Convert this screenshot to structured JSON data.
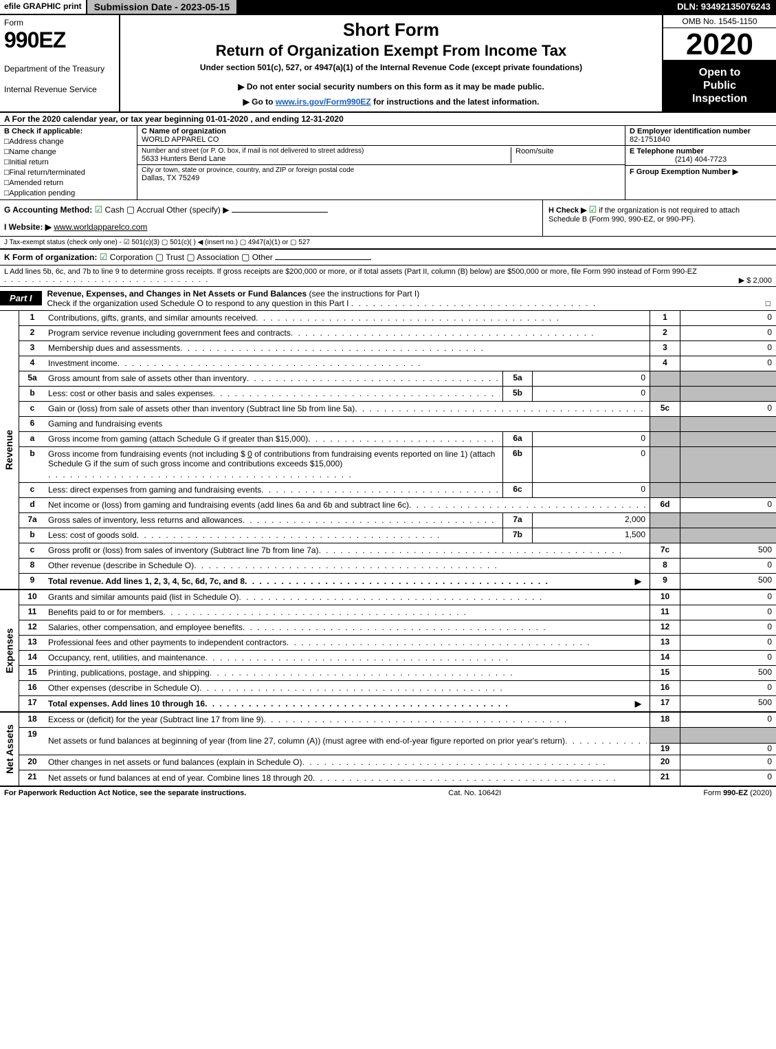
{
  "topbar": {
    "print": "efile GRAPHIC print",
    "sub_date": "Submission Date - 2023-05-15",
    "dln": "DLN: 93492135076243"
  },
  "header": {
    "form_word": "Form",
    "form_code": "990EZ",
    "dept": "Department of the Treasury",
    "irs": "Internal Revenue Service",
    "short_form": "Short Form",
    "return_title": "Return of Organization Exempt From Income Tax",
    "under_section": "Under section 501(c), 527, or 4947(a)(1) of the Internal Revenue Code (except private foundations)",
    "ssn_warning": "▶ Do not enter social security numbers on this form as it may be made public.",
    "goto_prefix": "▶ Go to ",
    "goto_link": "www.irs.gov/Form990EZ",
    "goto_suffix": " for instructions and the latest information.",
    "omb": "OMB No. 1545-1150",
    "year": "2020",
    "open1": "Open to",
    "open2": "Public",
    "open3": "Inspection"
  },
  "rowA": "A For the 2020 calendar year, or tax year beginning 01-01-2020 , and ending 12-31-2020",
  "colB": {
    "title": "B  Check if applicable:",
    "opts": [
      "Address change",
      "Name change",
      "Initial return",
      "Final return/terminated",
      "Amended return",
      "Application pending"
    ]
  },
  "colC": {
    "name_lbl": "C Name of organization",
    "name_val": "WORLD APPAREL CO",
    "addr_lbl": "Number and street (or P. O. box, if mail is not delivered to street address)",
    "addr_val": "5633 Hunters Bend Lane",
    "room_lbl": "Room/suite",
    "city_lbl": "City or town, state or province, country, and ZIP or foreign postal code",
    "city_val": "Dallas, TX  75249"
  },
  "colDE": {
    "d_lbl": "D Employer identification number",
    "d_val": "82-1751840",
    "e_lbl": "E Telephone number",
    "e_val": "(214) 404-7723",
    "f_lbl": "F Group Exemption Number  ▶"
  },
  "rowG": {
    "label": "G Accounting Method:",
    "cash": " Cash",
    "accrual": " Accrual   Other (specify) ▶"
  },
  "rowH": {
    "label": "H  Check ▶",
    "text": " if the organization is not required to attach Schedule B (Form 990, 990-EZ, or 990-PF)."
  },
  "rowI": {
    "label": "I Website: ▶",
    "val": "www.worldapparelco.com"
  },
  "rowJ": "J Tax-exempt status (check only one) -  ☑ 501(c)(3)  ▢ 501(c)(  ) ◀ (insert no.)  ▢ 4947(a)(1) or  ▢ 527",
  "rowK": {
    "label": "K Form of organization:",
    "corp": " Corporation",
    "trust": " Trust",
    "assoc": " Association",
    "other": " Other"
  },
  "rowL": {
    "text": "L Add lines 5b, 6c, and 7b to line 9 to determine gross receipts. If gross receipts are $200,000 or more, or if total assets (Part II, column (B) below) are $500,000 or more, file Form 990 instead of Form 990-EZ",
    "amount": "▶ $ 2,000"
  },
  "part1": {
    "tag": "Part I",
    "desc_bold": "Revenue, Expenses, and Changes in Net Assets or Fund Balances",
    "desc_rest": " (see the instructions for Part I)",
    "check_line": "Check if the organization used Schedule O to respond to any question in this Part I",
    "check_sym": "□"
  },
  "side_labels": {
    "revenue": "Revenue",
    "expenses": "Expenses",
    "netassets": "Net Assets"
  },
  "rev_lines": [
    {
      "n": "1",
      "t": "Contributions, gifts, grants, and similar amounts received",
      "rn": "1",
      "rv": "0"
    },
    {
      "n": "2",
      "t": "Program service revenue including government fees and contracts",
      "rn": "2",
      "rv": "0"
    },
    {
      "n": "3",
      "t": "Membership dues and assessments",
      "rn": "3",
      "rv": "0"
    },
    {
      "n": "4",
      "t": "Investment income",
      "rn": "4",
      "rv": "0"
    }
  ],
  "line5a": {
    "n": "5a",
    "t": "Gross amount from sale of assets other than inventory",
    "sb": "5a",
    "sv": "0"
  },
  "line5b": {
    "n": "b",
    "t": "Less: cost or other basis and sales expenses",
    "sb": "5b",
    "sv": "0"
  },
  "line5c": {
    "n": "c",
    "t": "Gain or (loss) from sale of assets other than inventory (Subtract line 5b from line 5a)",
    "rn": "5c",
    "rv": "0"
  },
  "line6": {
    "n": "6",
    "t": "Gaming and fundraising events"
  },
  "line6a": {
    "n": "a",
    "t": "Gross income from gaming (attach Schedule G if greater than $15,000)",
    "sb": "6a",
    "sv": "0"
  },
  "line6b": {
    "n": "b",
    "t1": "Gross income from fundraising events (not including $",
    "amt": "0",
    "t2": "of contributions from fundraising events reported on line 1) (attach Schedule G if the sum of such gross income and contributions exceeds $15,000)",
    "sb": "6b",
    "sv": "0"
  },
  "line6c": {
    "n": "c",
    "t": "Less: direct expenses from gaming and fundraising events",
    "sb": "6c",
    "sv": "0"
  },
  "line6d": {
    "n": "d",
    "t": "Net income or (loss) from gaming and fundraising events (add lines 6a and 6b and subtract line 6c)",
    "rn": "6d",
    "rv": "0"
  },
  "line7a": {
    "n": "7a",
    "t": "Gross sales of inventory, less returns and allowances",
    "sb": "7a",
    "sv": "2,000"
  },
  "line7b": {
    "n": "b",
    "t": "Less: cost of goods sold",
    "sb": "7b",
    "sv": "1,500"
  },
  "line7c": {
    "n": "c",
    "t": "Gross profit or (loss) from sales of inventory (Subtract line 7b from line 7a)",
    "rn": "7c",
    "rv": "500"
  },
  "line8": {
    "n": "8",
    "t": "Other revenue (describe in Schedule O)",
    "rn": "8",
    "rv": "0"
  },
  "line9": {
    "n": "9",
    "t": "Total revenue. Add lines 1, 2, 3, 4, 5c, 6d, 7c, and 8",
    "rn": "9",
    "rv": "500"
  },
  "exp_lines": [
    {
      "n": "10",
      "t": "Grants and similar amounts paid (list in Schedule O)",
      "rn": "10",
      "rv": "0"
    },
    {
      "n": "11",
      "t": "Benefits paid to or for members",
      "rn": "11",
      "rv": "0"
    },
    {
      "n": "12",
      "t": "Salaries, other compensation, and employee benefits",
      "rn": "12",
      "rv": "0"
    },
    {
      "n": "13",
      "t": "Professional fees and other payments to independent contractors",
      "rn": "13",
      "rv": "0"
    },
    {
      "n": "14",
      "t": "Occupancy, rent, utilities, and maintenance",
      "rn": "14",
      "rv": "0"
    },
    {
      "n": "15",
      "t": "Printing, publications, postage, and shipping",
      "rn": "15",
      "rv": "500"
    },
    {
      "n": "16",
      "t": "Other expenses (describe in Schedule O)",
      "rn": "16",
      "rv": "0"
    },
    {
      "n": "17",
      "t": "Total expenses. Add lines 10 through 16",
      "rn": "17",
      "rv": "500",
      "bold": true,
      "arrow": true
    }
  ],
  "na_lines": [
    {
      "n": "18",
      "t": "Excess or (deficit) for the year (Subtract line 17 from line 9)",
      "rn": "18",
      "rv": "0"
    },
    {
      "n": "19",
      "t": "Net assets or fund balances at beginning of year (from line 27, column (A)) (must agree with end-of-year figure reported on prior year's return)",
      "rn": "19",
      "rv": "0",
      "tall": true
    },
    {
      "n": "20",
      "t": "Other changes in net assets or fund balances (explain in Schedule O)",
      "rn": "20",
      "rv": "0"
    },
    {
      "n": "21",
      "t": "Net assets or fund balances at end of year. Combine lines 18 through 20",
      "rn": "21",
      "rv": "0"
    }
  ],
  "footer": {
    "left": "For Paperwork Reduction Act Notice, see the separate instructions.",
    "mid": "Cat. No. 10642I",
    "right_pre": "Form ",
    "right_bold": "990-EZ",
    "right_suf": " (2020)"
  },
  "colors": {
    "black": "#000000",
    "grey": "#bdbdbd",
    "link": "#1a5fbf",
    "check_green": "#1e7a2e"
  }
}
